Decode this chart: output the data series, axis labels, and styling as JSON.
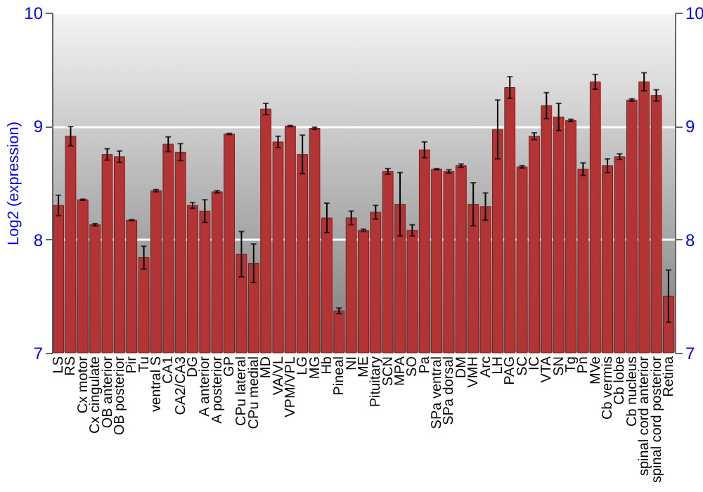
{
  "chart_data": {
    "type": "bar",
    "ylabel": "Log2 (expression)",
    "categories": [
      "LS",
      "RS",
      "Cx motor",
      "Cx cingulate",
      "OB anterior",
      "OB posterior",
      "Pir",
      "Tu",
      "ventral S",
      "CA1",
      "CA2/CA3",
      "DG",
      "A anterior",
      "A posterior",
      "GP",
      "CPu lateral",
      "CPu medial",
      "MD",
      "VA/VL",
      "VPM/VPL",
      "LG",
      "MG",
      "Hb",
      "Pineal",
      "NI",
      "ME",
      "Pituitary",
      "SCN",
      "MPA",
      "SO",
      "Pa",
      "SPa ventral",
      "SPa dorsal",
      "DM",
      "VMH",
      "Arc",
      "LH",
      "PAG",
      "SC",
      "IC",
      "VTA",
      "SN",
      "Tg",
      "Pn",
      "MVe",
      "Cb vermis",
      "Cb lobe",
      "Cb nucleus",
      "spinal cord anterior",
      "spinal cord posterior",
      "Retina"
    ],
    "series": [
      {
        "color": "#b23434",
        "values": [
          8.3,
          8.91,
          8.35,
          8.13,
          8.75,
          8.73,
          8.17,
          7.84,
          8.43,
          8.84,
          8.77,
          8.3,
          8.25,
          8.42,
          8.93,
          7.87,
          7.79,
          9.15,
          8.86,
          9.0,
          8.75,
          8.98,
          8.19,
          7.37,
          8.19,
          8.08,
          8.24,
          8.6,
          8.31,
          8.08,
          8.79,
          8.62,
          8.6,
          8.65,
          8.31,
          8.29,
          8.97,
          9.34,
          8.64,
          8.91,
          9.18,
          9.08,
          9.05,
          8.62,
          9.39,
          8.65,
          8.73,
          9.23,
          9.39,
          9.27,
          7.5
        ],
        "errors": [
          0.09,
          0.085,
          0.005,
          0.01,
          0.05,
          0.05,
          0.005,
          0.1,
          0.01,
          0.065,
          0.075,
          0.025,
          0.1,
          0.01,
          0.005,
          0.2,
          0.17,
          0.05,
          0.05,
          0.005,
          0.17,
          0.01,
          0.13,
          0.025,
          0.06,
          0.01,
          0.06,
          0.025,
          0.28,
          0.05,
          0.07,
          0.005,
          0.015,
          0.015,
          0.19,
          0.12,
          0.26,
          0.095,
          0.01,
          0.03,
          0.115,
          0.12,
          0.01,
          0.055,
          0.065,
          0.06,
          0.025,
          0.01,
          0.08,
          0.05,
          0.23
        ]
      }
    ],
    "ylim": [
      7,
      10
    ],
    "yticks": [
      7,
      8,
      9,
      10
    ],
    "y2lim": [
      7,
      10
    ],
    "y2ticks": [
      7,
      8,
      9,
      10
    ],
    "grid": "y"
  }
}
